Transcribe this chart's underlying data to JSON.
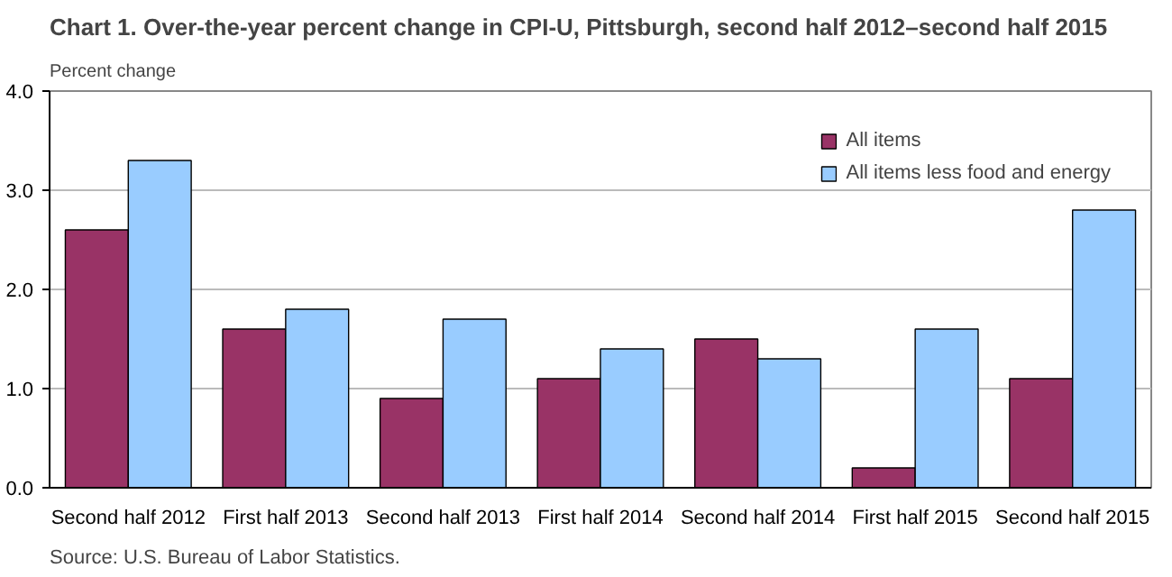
{
  "chart_data": {
    "type": "bar",
    "title": "Chart 1. Over-the-year percent change in CPI-U, Pittsburgh, second half 2012–second half 2015",
    "ylabel": "Percent change",
    "categories": [
      "Second half 2012",
      "First half 2013",
      "Second half 2013",
      "First half 2014",
      "Second half 2014",
      "First half 2015",
      "Second half 2015"
    ],
    "series": [
      {
        "name": "All items",
        "color": "#993366",
        "values": [
          2.6,
          1.6,
          0.9,
          1.1,
          1.5,
          0.2,
          1.1
        ]
      },
      {
        "name": "All items less food and energy",
        "color": "#99ccff",
        "values": [
          3.3,
          1.8,
          1.7,
          1.4,
          1.3,
          1.6,
          2.8
        ]
      }
    ],
    "ylim": [
      0,
      4
    ],
    "yticks": [
      {
        "value": 0,
        "label": "0.0"
      },
      {
        "value": 1,
        "label": "1.0"
      },
      {
        "value": 2,
        "label": "2.0"
      },
      {
        "value": 3,
        "label": "3.0"
      },
      {
        "value": 4,
        "label": "4.0"
      }
    ],
    "grid": "y",
    "legend": "top right",
    "annotations": [
      "Source: U.S. Bureau of Labor Statistics."
    ]
  }
}
